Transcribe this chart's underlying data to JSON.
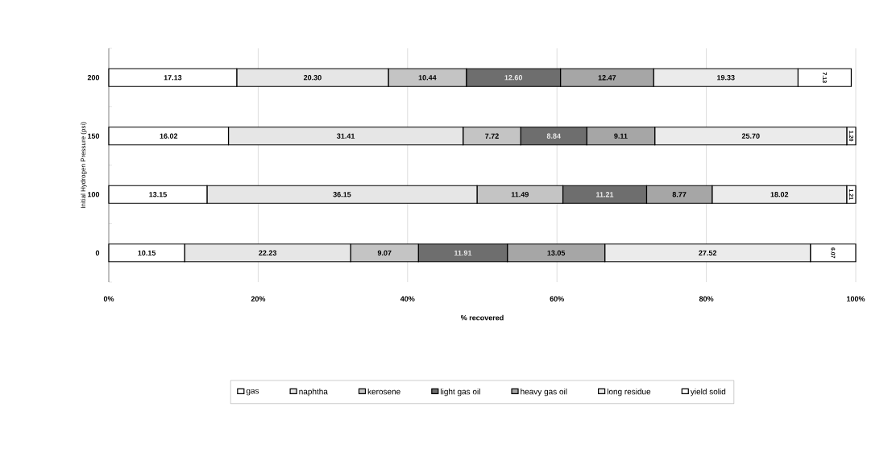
{
  "chart_data": {
    "type": "bar",
    "orientation": "horizontal",
    "stacked": true,
    "ylabel": "Initial Hydrogen Pressure (psi)",
    "xlabel": "% recovered",
    "categories": [
      "200",
      "150",
      "100",
      "0"
    ],
    "series": [
      {
        "name": "gas",
        "color": "#ffffff",
        "values": [
          17.13,
          16.02,
          13.15,
          10.15
        ],
        "value_labels": [
          "17.13",
          "16.02",
          "13.15",
          "10.15"
        ]
      },
      {
        "name": "naphtha",
        "color": "#e6e6e6",
        "values": [
          20.3,
          31.41,
          36.15,
          22.23
        ],
        "value_labels": [
          "20.30",
          "31.41",
          "36.15",
          "22.23"
        ]
      },
      {
        "name": "kerosene",
        "color": "#c4c4c4",
        "values": [
          10.44,
          7.72,
          11.49,
          9.07
        ],
        "value_labels": [
          "10.44",
          "7.72",
          "11.49",
          "9.07"
        ]
      },
      {
        "name": "light gas oil",
        "color": "#6e6e6e",
        "values": [
          12.6,
          8.84,
          11.21,
          11.91
        ],
        "value_labels": [
          "12.60",
          "8.84",
          "11.21",
          "11.91"
        ]
      },
      {
        "name": "heavy gas oil",
        "color": "#a6a6a6",
        "values": [
          12.47,
          9.11,
          8.77,
          13.05
        ],
        "value_labels": [
          "12.47",
          "9.11",
          "8.77",
          "13.05"
        ]
      },
      {
        "name": "long residue",
        "color": "#ebebeb",
        "values": [
          19.33,
          25.7,
          18.02,
          27.52
        ],
        "value_labels": [
          "19.33",
          "25.70",
          "18.02",
          "27.52"
        ]
      },
      {
        "name": "yield solid",
        "color": "#ffffff",
        "values": [
          7.13,
          1.2,
          1.21,
          6.07
        ],
        "value_labels": [
          "7.13",
          "1.20",
          "1.21",
          "6.07"
        ]
      }
    ],
    "xlim": [
      0,
      100
    ],
    "xticks": [
      {
        "value": 0,
        "label": "0%"
      },
      {
        "value": 20,
        "label": "20%"
      },
      {
        "value": 40,
        "label": "40%"
      },
      {
        "value": 60,
        "label": "60%"
      },
      {
        "value": 80,
        "label": "80%"
      },
      {
        "value": 100,
        "label": "100%"
      }
    ],
    "grid": "x",
    "legend": "bottom"
  }
}
